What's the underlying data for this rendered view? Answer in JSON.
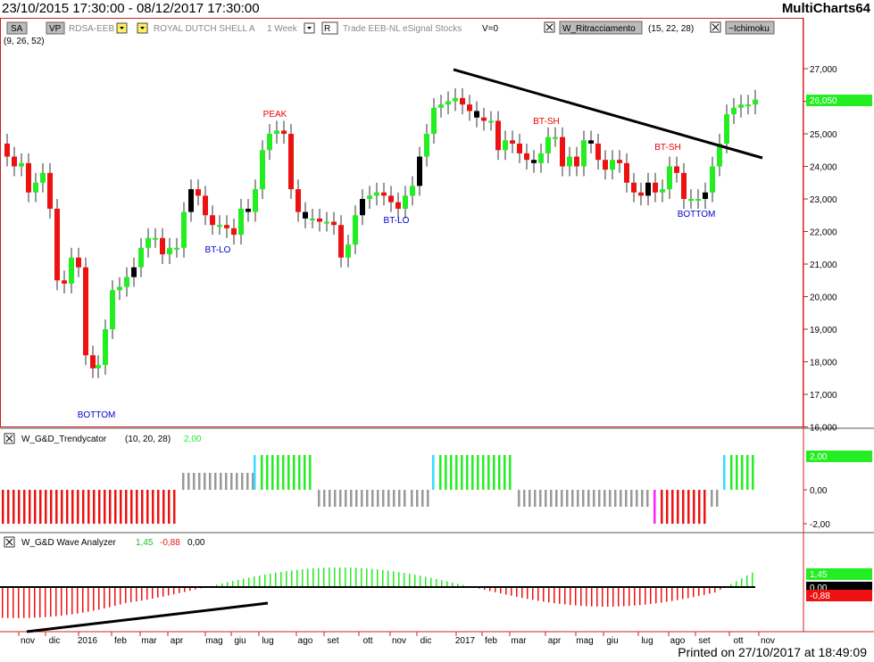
{
  "window": {
    "date_range": "23/10/2015 17:30:00 - 08/12/2017 17:30:00",
    "app_name": "MultiCharts64",
    "printed": "Printed on 27/10/2017 at 18:49:09"
  },
  "toolbar": {
    "sa_label": "SA",
    "vp_label": "VP",
    "symbol": "RDSA-EEB",
    "symbol_name": "ROYAL DUTCH SHELL A",
    "resolution": "1 Week",
    "r_label": "R",
    "data_source": "Trade EEB-NL eSignal Stocks",
    "volume_field": "V=0",
    "study1_name": "W_Ritracciamento",
    "study1_params": "(15, 22, 28)",
    "study2_name": "~Ichimoku",
    "study2_params": "(9, 26, 52)"
  },
  "price_panel": {
    "y_ticks": [
      "27,000",
      "26,000",
      "25,000",
      "24,000",
      "23,000",
      "22,000",
      "21,000",
      "20,000",
      "19,000",
      "18,000",
      "17,000",
      "16,000"
    ],
    "last_price": "26,050",
    "annotations": [
      {
        "text": "PEAK",
        "color": "#ee0000"
      },
      {
        "text": "BT-LO",
        "color": "#0000cc"
      },
      {
        "text": "BT-LO",
        "color": "#0000cc"
      },
      {
        "text": "BT-SH",
        "color": "#ee0000"
      },
      {
        "text": "BT-SH",
        "color": "#ee0000"
      },
      {
        "text": "BOTTOM",
        "color": "#0000cc"
      },
      {
        "text": "BOTTOM",
        "color": "#0000cc"
      }
    ]
  },
  "trend_panel": {
    "name": "W_G&D_Trendycator",
    "params": "(10, 20, 28)",
    "value": "2,00",
    "y_ticks": [
      "2,00",
      "0,00",
      "-2,00"
    ]
  },
  "wave_panel": {
    "name": "W_G&D Wave Analyzer",
    "value_pos": "1,45",
    "value_neg": "-0,88",
    "value_zero": "0,00",
    "axis_pos": "1,45",
    "axis_zero": "0,00",
    "axis_neg": "-0,88"
  },
  "time_axis": {
    "labels": [
      "nov",
      "dic",
      "2016",
      "feb",
      "mar",
      "apr",
      "mag",
      "giu",
      "lug",
      "ago",
      "set",
      "ott",
      "nov",
      "dic",
      "2017",
      "feb",
      "mar",
      "apr",
      "mag",
      "giu",
      "lug",
      "ago",
      "set",
      "ott",
      "nov"
    ]
  },
  "colors": {
    "up": "#22ee22",
    "down": "#ee1111",
    "neutral": "#999999",
    "cyan": "#33ddff",
    "magenta": "#ff22ff",
    "grid": "#d0d0d0",
    "axis": "#cc2222"
  }
}
